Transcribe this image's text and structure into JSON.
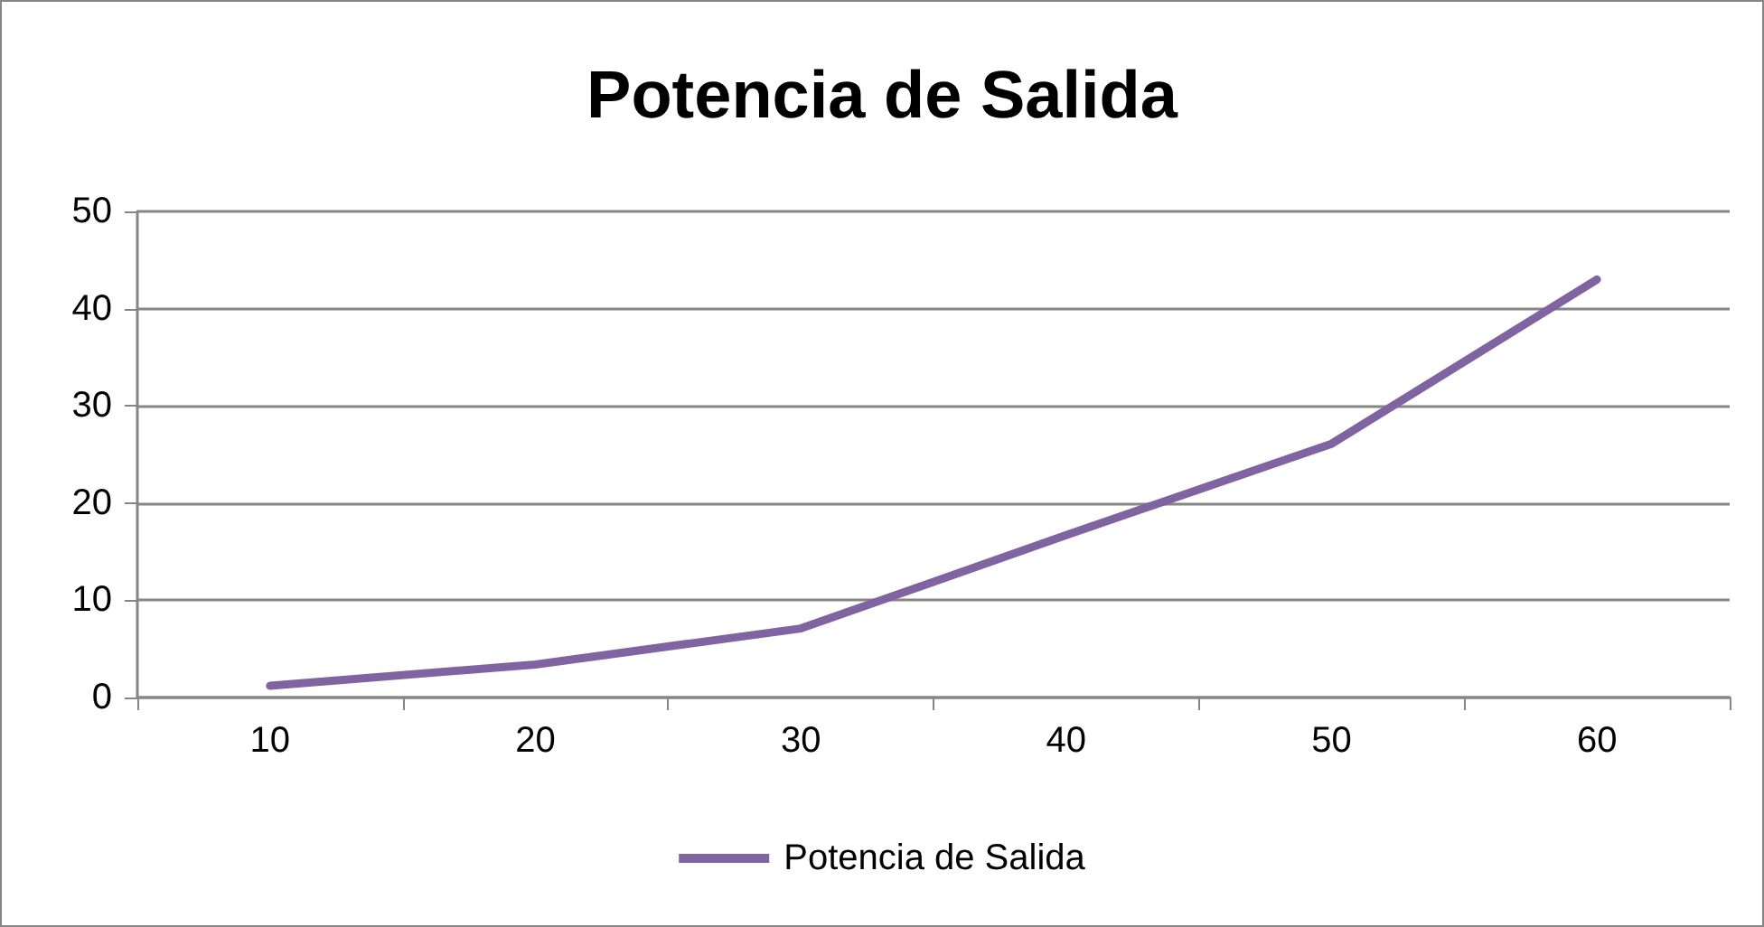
{
  "chart_data": {
    "type": "line",
    "title": "Potencia de Salida",
    "categories": [
      "10",
      "20",
      "30",
      "40",
      "50",
      "60"
    ],
    "series": [
      {
        "name": "Potencia de Salida",
        "color": "#8064a2",
        "values": [
          1.2,
          3.4,
          7.1,
          16.7,
          26.1,
          43.0
        ]
      }
    ],
    "ylim": [
      0,
      50
    ],
    "yticks": [
      0,
      10,
      20,
      30,
      40,
      50
    ],
    "grid": "y",
    "legend": "bottom",
    "marker": "none",
    "line_style": "solid"
  }
}
